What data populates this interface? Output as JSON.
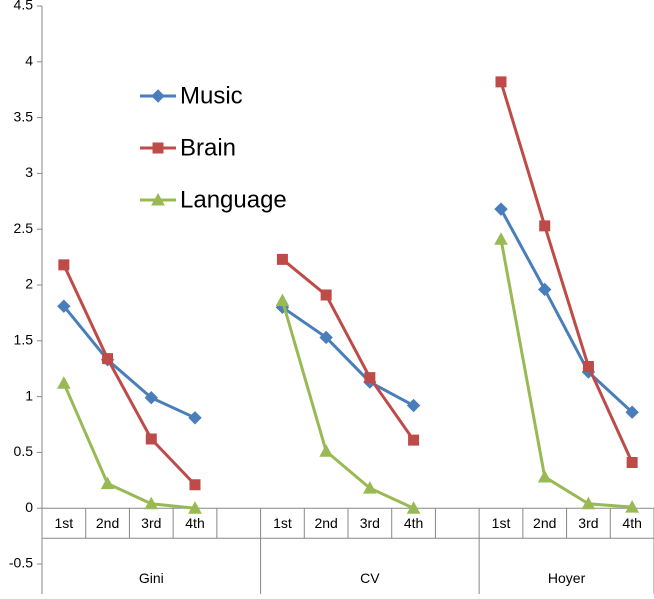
{
  "chart_data": {
    "type": "line",
    "categories": [
      "1st",
      "2nd",
      "3rd",
      "4th",
      null,
      "1st",
      "2nd",
      "3rd",
      "4th",
      null,
      "1st",
      "2nd",
      "3rd",
      "4th"
    ],
    "groups": [
      "Gini",
      "CV",
      "Hoyer"
    ],
    "series": [
      {
        "name": "Music",
        "color": "#4a7ebb",
        "marker": "diamond",
        "values": [
          1.81,
          1.33,
          0.99,
          0.81,
          null,
          1.8,
          1.53,
          1.13,
          0.92,
          null,
          2.68,
          1.96,
          1.22,
          0.86
        ]
      },
      {
        "name": "Brain",
        "color": "#be4b48",
        "marker": "square",
        "values": [
          2.18,
          1.34,
          0.62,
          0.21,
          null,
          2.23,
          1.91,
          1.17,
          0.61,
          null,
          3.82,
          2.53,
          1.27,
          0.41
        ]
      },
      {
        "name": "Language",
        "color": "#98b954",
        "marker": "triangle",
        "values": [
          1.12,
          0.22,
          0.04,
          0.0,
          null,
          1.86,
          0.51,
          0.18,
          0.0,
          null,
          2.41,
          0.28,
          0.04,
          0.01
        ]
      }
    ],
    "ylim": [
      -0.5,
      4.5
    ],
    "yticks": [
      -0.5,
      0,
      0.5,
      1,
      1.5,
      2,
      2.5,
      3,
      3.5,
      4,
      4.5
    ],
    "grid": false,
    "legend": "upper-left"
  }
}
